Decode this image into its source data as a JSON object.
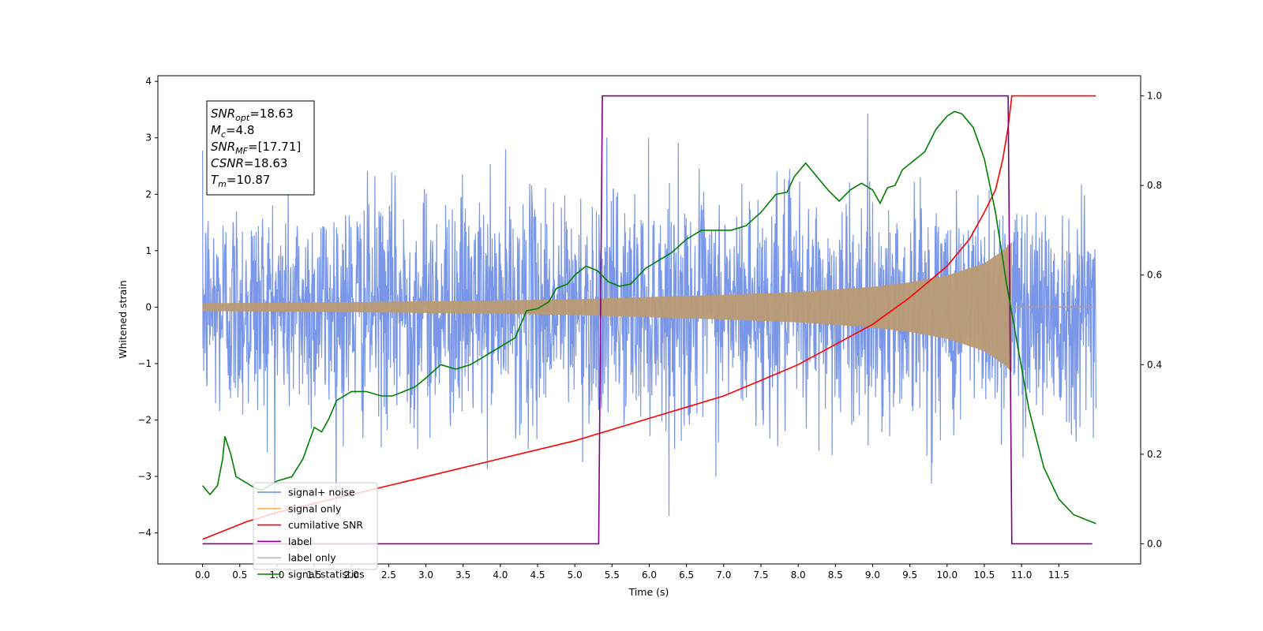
{
  "chart_data": {
    "type": "line",
    "xlabel": "Time (s)",
    "ylabel": "Whitened strain",
    "xlim": [
      -0.6,
      12.6
    ],
    "ylim": [
      -4.55,
      4.1
    ],
    "y2lim": [
      -0.045,
      1.045
    ],
    "xticks": [
      0.0,
      0.5,
      1.0,
      1.5,
      2.0,
      2.5,
      3.0,
      3.5,
      4.0,
      4.5,
      5.0,
      5.5,
      6.0,
      6.5,
      7.0,
      7.5,
      8.0,
      8.5,
      9.0,
      9.5,
      10.0,
      10.5,
      11.0,
      11.5
    ],
    "xtick_labels": [
      "0.0",
      "0.5",
      "1.0",
      "1.5",
      "2.0",
      "2.5",
      "3.0",
      "3.5",
      "4.0",
      "4.5",
      "5.0",
      "5.5",
      "6.0",
      "6.5",
      "7.0",
      "7.5",
      "8.0",
      "8.5",
      "9.0",
      "9.5",
      "10.0",
      "10.5",
      "11.0",
      "11.5"
    ],
    "yticks": [
      4,
      3,
      2,
      1,
      0,
      -1,
      -2,
      -3,
      -4
    ],
    "ytick_labels": [
      "4",
      "3",
      "2",
      "1",
      "0",
      "−1",
      "−2",
      "−3",
      "−4"
    ],
    "y2ticks": [
      1.0,
      0.8,
      0.6,
      0.4,
      0.2,
      0.0
    ],
    "y2tick_labels": [
      "1.0",
      "0.8",
      "0.6",
      "0.4",
      "0.2",
      "0.0"
    ],
    "grid": false,
    "legend_position": "lower-left",
    "colors": {
      "signal_noise": "#6a8be6",
      "signal_only": "#f5b35f",
      "signal_only_visible": "#bb9a74",
      "cumulative_snr": "#ff0000",
      "label": "#800080",
      "signal_statistics": "#008000"
    },
    "signal_noise": {
      "x_start": 0.0,
      "x_end": 12.0,
      "sigma": 1.0,
      "max_abs": 3.7
    },
    "signal_only": {
      "x_start": 0.0,
      "x_merge": 10.87,
      "x_end": 12.0,
      "envelope": [
        {
          "x": 0.0,
          "y": 0.07
        },
        {
          "x": 2.0,
          "y": 0.09
        },
        {
          "x": 4.0,
          "y": 0.12
        },
        {
          "x": 5.0,
          "y": 0.14
        },
        {
          "x": 6.0,
          "y": 0.18
        },
        {
          "x": 7.0,
          "y": 0.22
        },
        {
          "x": 8.0,
          "y": 0.27
        },
        {
          "x": 9.0,
          "y": 0.36
        },
        {
          "x": 9.5,
          "y": 0.44
        },
        {
          "x": 10.0,
          "y": 0.56
        },
        {
          "x": 10.5,
          "y": 0.78
        },
        {
          "x": 10.75,
          "y": 1.0
        },
        {
          "x": 10.87,
          "y": 1.15
        }
      ]
    },
    "series": [
      {
        "name": "cumilative SNR",
        "axis": "right",
        "points": [
          {
            "x": 0.0,
            "y": 0.01
          },
          {
            "x": 0.3,
            "y": 0.03
          },
          {
            "x": 0.6,
            "y": 0.05
          },
          {
            "x": 1.0,
            "y": 0.07
          },
          {
            "x": 1.5,
            "y": 0.09
          },
          {
            "x": 2.0,
            "y": 0.11
          },
          {
            "x": 3.0,
            "y": 0.15
          },
          {
            "x": 4.0,
            "y": 0.19
          },
          {
            "x": 5.0,
            "y": 0.23
          },
          {
            "x": 5.5,
            "y": 0.255
          },
          {
            "x": 6.0,
            "y": 0.28
          },
          {
            "x": 6.5,
            "y": 0.305
          },
          {
            "x": 7.0,
            "y": 0.33
          },
          {
            "x": 7.5,
            "y": 0.365
          },
          {
            "x": 8.0,
            "y": 0.4
          },
          {
            "x": 8.5,
            "y": 0.445
          },
          {
            "x": 9.0,
            "y": 0.49
          },
          {
            "x": 9.5,
            "y": 0.55
          },
          {
            "x": 10.0,
            "y": 0.62
          },
          {
            "x": 10.3,
            "y": 0.68
          },
          {
            "x": 10.5,
            "y": 0.74
          },
          {
            "x": 10.65,
            "y": 0.79
          },
          {
            "x": 10.75,
            "y": 0.86
          },
          {
            "x": 10.82,
            "y": 0.93
          },
          {
            "x": 10.87,
            "y": 1.0
          },
          {
            "x": 12.0,
            "y": 1.0
          }
        ]
      },
      {
        "name": "label",
        "axis": "right",
        "points": [
          {
            "x": 0.0,
            "y": 0.0
          },
          {
            "x": 5.32,
            "y": 0.0
          },
          {
            "x": 5.37,
            "y": 1.0
          },
          {
            "x": 10.82,
            "y": 1.0
          },
          {
            "x": 10.87,
            "y": 0.0
          },
          {
            "x": 11.95,
            "y": 0.0
          }
        ]
      },
      {
        "name": "signal statistics",
        "axis": "right",
        "points": [
          {
            "x": 0.0,
            "y": 0.13
          },
          {
            "x": 0.1,
            "y": 0.11
          },
          {
            "x": 0.2,
            "y": 0.13
          },
          {
            "x": 0.27,
            "y": 0.19
          },
          {
            "x": 0.3,
            "y": 0.24
          },
          {
            "x": 0.38,
            "y": 0.2
          },
          {
            "x": 0.45,
            "y": 0.15
          },
          {
            "x": 0.55,
            "y": 0.14
          },
          {
            "x": 0.7,
            "y": 0.125
          },
          {
            "x": 0.8,
            "y": 0.12
          },
          {
            "x": 1.0,
            "y": 0.14
          },
          {
            "x": 1.2,
            "y": 0.15
          },
          {
            "x": 1.35,
            "y": 0.19
          },
          {
            "x": 1.5,
            "y": 0.26
          },
          {
            "x": 1.6,
            "y": 0.25
          },
          {
            "x": 1.7,
            "y": 0.28
          },
          {
            "x": 1.8,
            "y": 0.32
          },
          {
            "x": 2.0,
            "y": 0.34
          },
          {
            "x": 2.2,
            "y": 0.34
          },
          {
            "x": 2.4,
            "y": 0.33
          },
          {
            "x": 2.55,
            "y": 0.33
          },
          {
            "x": 2.7,
            "y": 0.34
          },
          {
            "x": 2.85,
            "y": 0.35
          },
          {
            "x": 3.0,
            "y": 0.37
          },
          {
            "x": 3.2,
            "y": 0.4
          },
          {
            "x": 3.4,
            "y": 0.39
          },
          {
            "x": 3.6,
            "y": 0.4
          },
          {
            "x": 3.8,
            "y": 0.42
          },
          {
            "x": 4.0,
            "y": 0.44
          },
          {
            "x": 4.2,
            "y": 0.46
          },
          {
            "x": 4.35,
            "y": 0.52
          },
          {
            "x": 4.5,
            "y": 0.525
          },
          {
            "x": 4.65,
            "y": 0.54
          },
          {
            "x": 4.75,
            "y": 0.57
          },
          {
            "x": 4.9,
            "y": 0.58
          },
          {
            "x": 5.0,
            "y": 0.6
          },
          {
            "x": 5.15,
            "y": 0.62
          },
          {
            "x": 5.3,
            "y": 0.61
          },
          {
            "x": 5.45,
            "y": 0.585
          },
          {
            "x": 5.6,
            "y": 0.575
          },
          {
            "x": 5.75,
            "y": 0.58
          },
          {
            "x": 5.95,
            "y": 0.615
          },
          {
            "x": 6.1,
            "y": 0.63
          },
          {
            "x": 6.3,
            "y": 0.65
          },
          {
            "x": 6.5,
            "y": 0.68
          },
          {
            "x": 6.7,
            "y": 0.7
          },
          {
            "x": 6.9,
            "y": 0.7
          },
          {
            "x": 7.1,
            "y": 0.7
          },
          {
            "x": 7.3,
            "y": 0.71
          },
          {
            "x": 7.5,
            "y": 0.74
          },
          {
            "x": 7.7,
            "y": 0.78
          },
          {
            "x": 7.85,
            "y": 0.785
          },
          {
            "x": 7.95,
            "y": 0.82
          },
          {
            "x": 8.1,
            "y": 0.85
          },
          {
            "x": 8.25,
            "y": 0.82
          },
          {
            "x": 8.4,
            "y": 0.79
          },
          {
            "x": 8.55,
            "y": 0.765
          },
          {
            "x": 8.7,
            "y": 0.79
          },
          {
            "x": 8.85,
            "y": 0.805
          },
          {
            "x": 9.0,
            "y": 0.79
          },
          {
            "x": 9.1,
            "y": 0.76
          },
          {
            "x": 9.2,
            "y": 0.795
          },
          {
            "x": 9.3,
            "y": 0.8
          },
          {
            "x": 9.4,
            "y": 0.835
          },
          {
            "x": 9.55,
            "y": 0.855
          },
          {
            "x": 9.7,
            "y": 0.875
          },
          {
            "x": 9.85,
            "y": 0.925
          },
          {
            "x": 10.0,
            "y": 0.955
          },
          {
            "x": 10.1,
            "y": 0.965
          },
          {
            "x": 10.2,
            "y": 0.96
          },
          {
            "x": 10.35,
            "y": 0.93
          },
          {
            "x": 10.5,
            "y": 0.86
          },
          {
            "x": 10.65,
            "y": 0.74
          },
          {
            "x": 10.8,
            "y": 0.58
          },
          {
            "x": 10.95,
            "y": 0.44
          },
          {
            "x": 11.1,
            "y": 0.3
          },
          {
            "x": 11.3,
            "y": 0.17
          },
          {
            "x": 11.5,
            "y": 0.1
          },
          {
            "x": 11.7,
            "y": 0.065
          },
          {
            "x": 11.85,
            "y": 0.055
          },
          {
            "x": 12.0,
            "y": 0.045
          }
        ]
      }
    ],
    "legend": [
      {
        "label": "signal+ noise",
        "color": "#6a8be6"
      },
      {
        "label": "signal only",
        "color": "#f5b35f"
      },
      {
        "label": "cumilative SNR",
        "color": "#ff0000"
      },
      {
        "label": "label",
        "color": "#800080"
      },
      {
        "label": "label only",
        "color": "#bbbbbb"
      },
      {
        "label": "signal statistics",
        "color": "#008000"
      }
    ],
    "annotation": {
      "lines": [
        {
          "sym": "SNR",
          "sub": "opt",
          "value": "=18.63"
        },
        {
          "sym": "M",
          "sub": "c",
          "value": "=4.8"
        },
        {
          "sym": "SNR",
          "sub": "MF",
          "value": "=[17.71]"
        },
        {
          "sym": "CSNR",
          "sub": "",
          "value": "=18.63"
        },
        {
          "sym": "T",
          "sub": "m",
          "value": "=10.87"
        }
      ]
    }
  }
}
